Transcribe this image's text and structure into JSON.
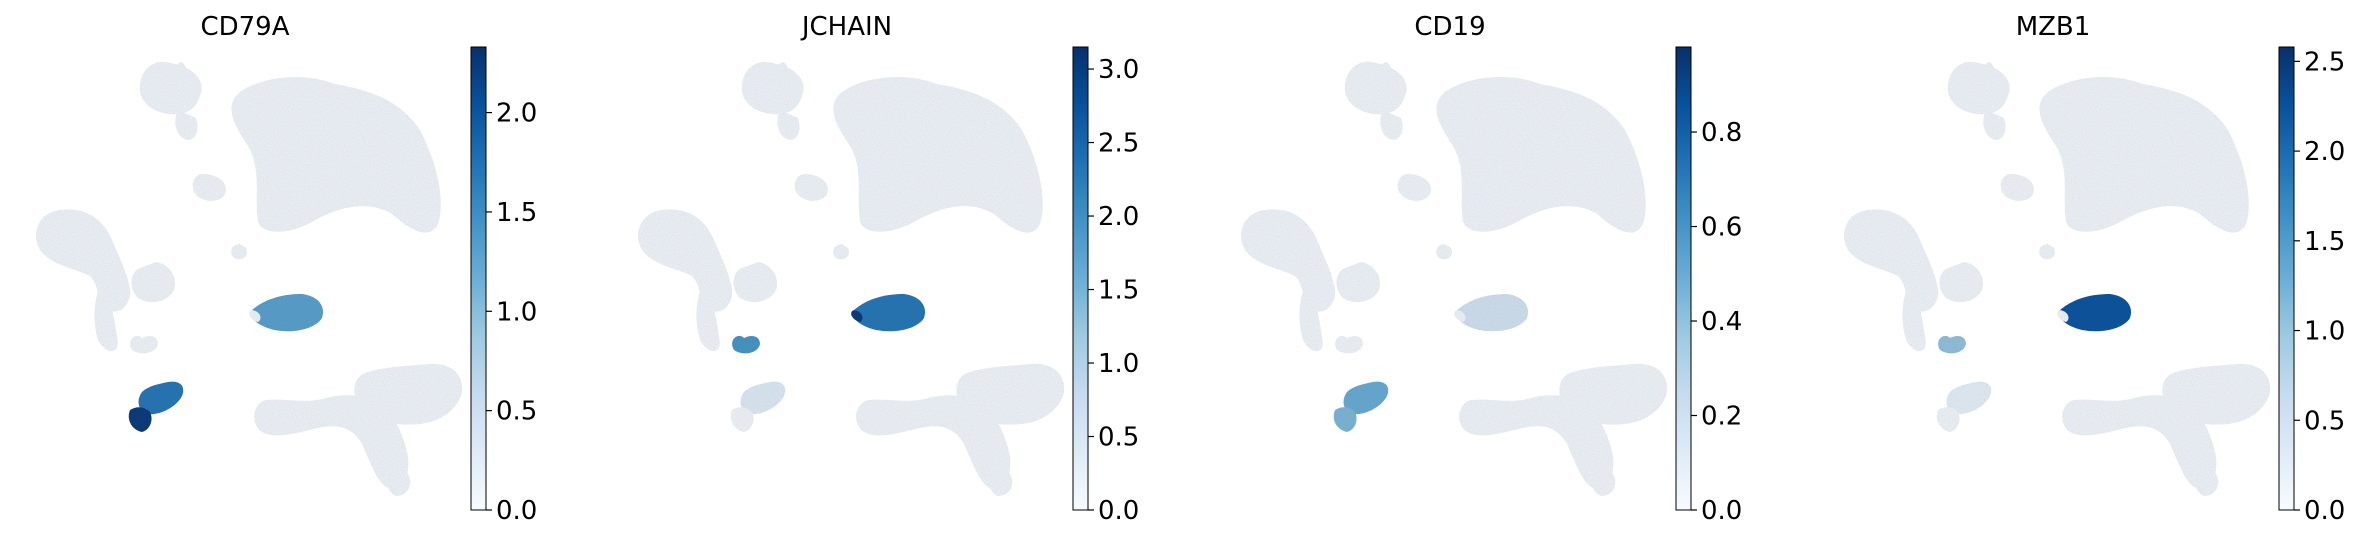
{
  "chart_data": [
    {
      "type": "scatter",
      "title": "CD79A",
      "colormap": "Blues",
      "colorbar": {
        "range": [
          0,
          2.33
        ],
        "ticks": [
          "0.0",
          "0.5",
          "1.0",
          "1.5",
          "2.0"
        ]
      },
      "high_regions": [
        {
          "cluster": "cluster-right-middle",
          "level": 0.55
        },
        {
          "cluster": "cluster-lower-left-upper",
          "level": 0.72
        },
        {
          "cluster": "cluster-lower-left-tip",
          "level": 0.95
        }
      ]
    },
    {
      "type": "scatter",
      "title": "JCHAIN",
      "colormap": "Blues",
      "colorbar": {
        "range": [
          0,
          3.15
        ],
        "ticks": [
          "0.0",
          "0.5",
          "1.0",
          "1.5",
          "2.0",
          "2.5",
          "3.0"
        ]
      },
      "high_regions": [
        {
          "cluster": "cluster-right-middle",
          "level": 0.72
        },
        {
          "cluster": "cluster-right-middle-tip",
          "level": 0.95
        },
        {
          "cluster": "cluster-small-band",
          "level": 0.6
        },
        {
          "cluster": "cluster-lower-left-upper",
          "level": 0.12
        }
      ]
    },
    {
      "type": "scatter",
      "title": "CD19",
      "colormap": "Blues",
      "colorbar": {
        "range": [
          0,
          0.98
        ],
        "ticks": [
          "0.0",
          "0.2",
          "0.4",
          "0.6",
          "0.8"
        ]
      },
      "high_regions": [
        {
          "cluster": "cluster-right-middle",
          "level": 0.18
        },
        {
          "cluster": "cluster-lower-left-upper",
          "level": 0.5
        },
        {
          "cluster": "cluster-lower-left-tip",
          "level": 0.45
        }
      ]
    },
    {
      "type": "scatter",
      "title": "MZB1",
      "colormap": "Blues",
      "colorbar": {
        "range": [
          0,
          2.58
        ],
        "ticks": [
          "0.0",
          "0.5",
          "1.0",
          "1.5",
          "2.0",
          "2.5"
        ]
      },
      "high_regions": [
        {
          "cluster": "cluster-right-middle",
          "level": 0.85
        },
        {
          "cluster": "cluster-small-band",
          "level": 0.4
        },
        {
          "cluster": "cluster-lower-left-upper",
          "level": 0.08
        }
      ]
    }
  ]
}
